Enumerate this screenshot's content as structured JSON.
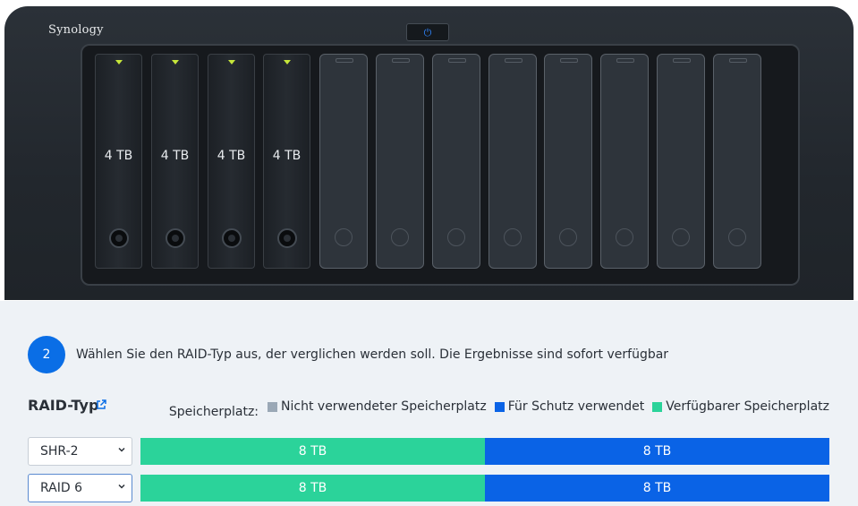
{
  "device": {
    "brand": "Synology",
    "power_glyph": "⏻",
    "installed_drives": [
      "4 TB",
      "4 TB",
      "4 TB",
      "4 TB"
    ],
    "empty_bays": 8
  },
  "step": {
    "number": "2",
    "instruction": "Wählen Sie den RAID-Typ aus, der verglichen werden soll. Die Ergebnisse sind sofort verfügbar"
  },
  "raid": {
    "title": "RAID-Typ",
    "external_icon": "external-link-icon"
  },
  "legend": {
    "label": "Speicherplatz:",
    "unused": {
      "label": "Nicht verwendeter Speicherplatz",
      "color": "#9aa8b6"
    },
    "protection": {
      "label": "Für Schutz verwendet",
      "color": "#0a63e6"
    },
    "available": {
      "label": "Verfügbarer Speicherplatz",
      "color": "#2bd39a"
    }
  },
  "rows": [
    {
      "raid_type": "SHR-2",
      "available": "8 TB",
      "protection": "8 TB",
      "available_fraction": 0.5,
      "protection_fraction": 0.5
    },
    {
      "raid_type": "RAID 6",
      "available": "8 TB",
      "protection": "8 TB",
      "available_fraction": 0.5,
      "protection_fraction": 0.5
    }
  ]
}
